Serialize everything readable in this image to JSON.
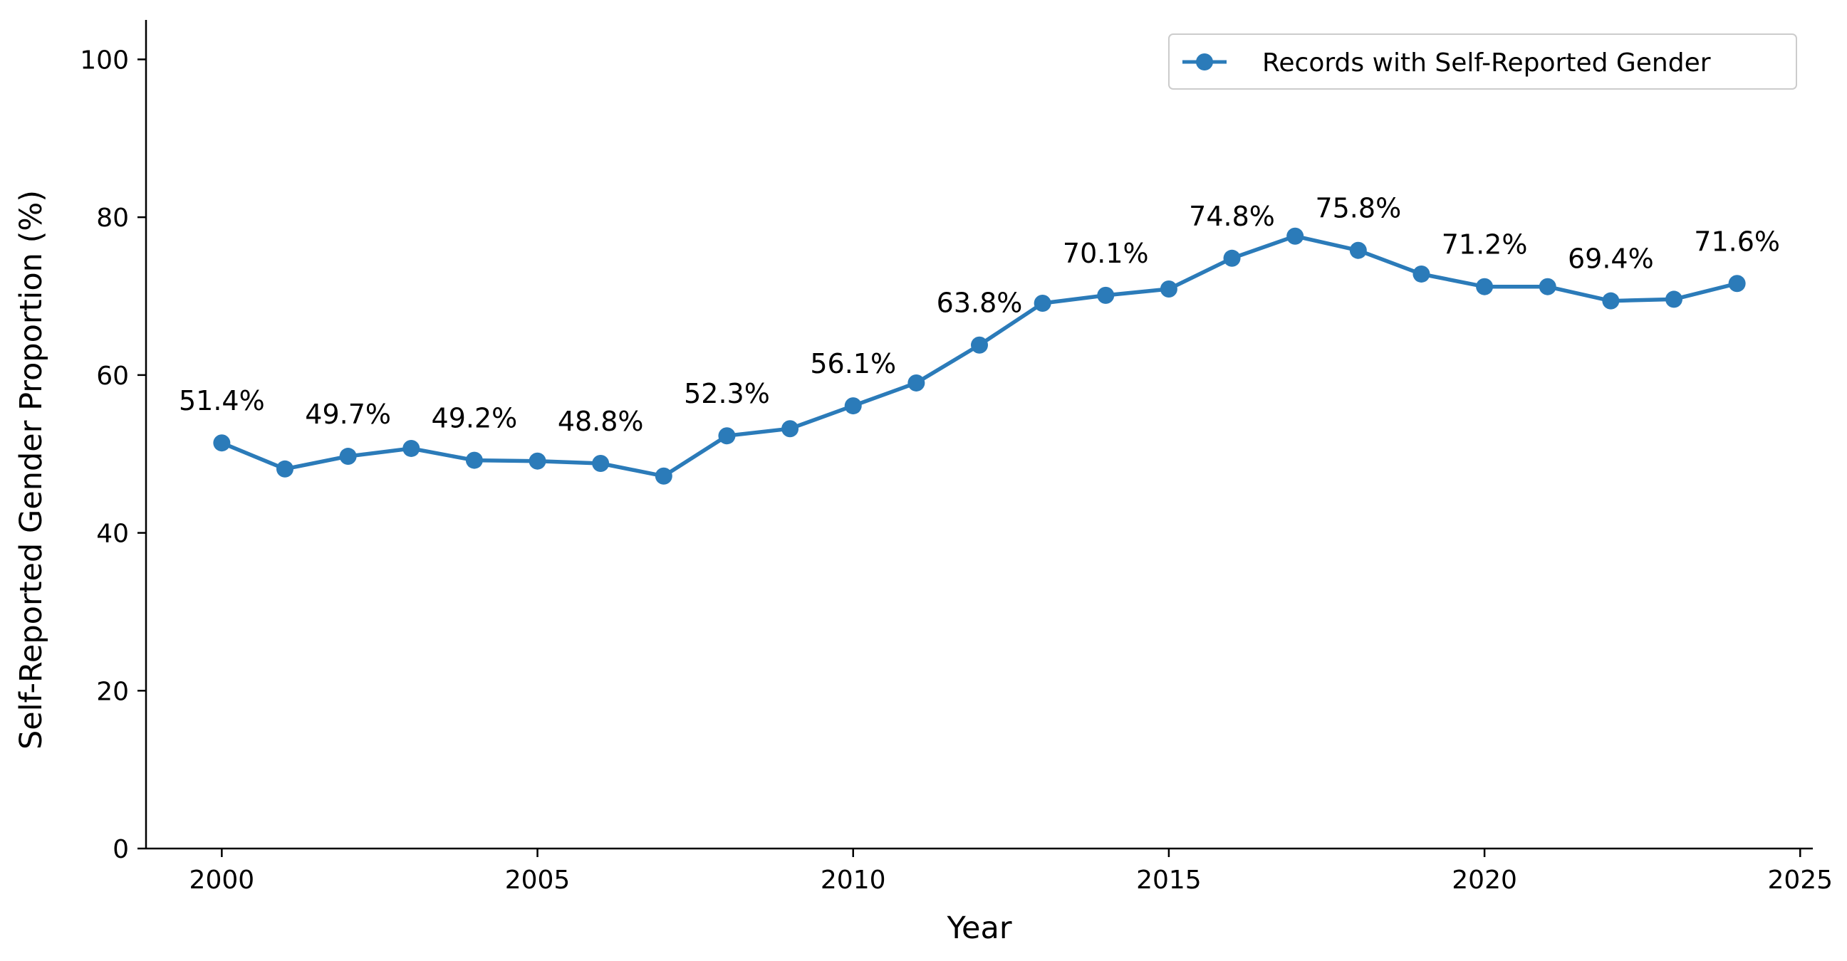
{
  "chart_data": {
    "type": "line",
    "title": "",
    "xlabel": "Year",
    "ylabel": "Self-Reported Gender Proportion (%)",
    "xlim": [
      1998.8,
      2025.2
    ],
    "ylim": [
      0,
      105
    ],
    "xticks": [
      2000,
      2005,
      2010,
      2015,
      2020,
      2025
    ],
    "yticks": [
      0,
      20,
      40,
      60,
      80,
      100
    ],
    "grid": false,
    "legend_position": "top-right",
    "series": [
      {
        "name": "Records with Self-Reported Gender",
        "color": "#2b7bb9",
        "x": [
          2000,
          2001,
          2002,
          2003,
          2004,
          2005,
          2006,
          2007,
          2008,
          2009,
          2010,
          2011,
          2012,
          2013,
          2014,
          2015,
          2016,
          2017,
          2018,
          2019,
          2020,
          2021,
          2022,
          2023,
          2024
        ],
        "values": [
          51.4,
          48.1,
          49.7,
          50.7,
          49.2,
          49.1,
          48.8,
          47.2,
          52.3,
          53.2,
          56.1,
          59.0,
          63.8,
          69.1,
          70.1,
          70.9,
          74.8,
          77.6,
          75.8,
          72.8,
          71.2,
          71.2,
          69.4,
          69.6,
          71.6
        ]
      }
    ],
    "annotations": [
      {
        "x": 2000,
        "value": 51.4,
        "text": "51.4%"
      },
      {
        "x": 2002,
        "value": 49.7,
        "text": "49.7%"
      },
      {
        "x": 2004,
        "value": 49.2,
        "text": "49.2%"
      },
      {
        "x": 2006,
        "value": 48.8,
        "text": "48.8%"
      },
      {
        "x": 2008,
        "value": 52.3,
        "text": "52.3%"
      },
      {
        "x": 2010,
        "value": 56.1,
        "text": "56.1%"
      },
      {
        "x": 2012,
        "value": 63.8,
        "text": "63.8%"
      },
      {
        "x": 2014,
        "value": 70.1,
        "text": "70.1%"
      },
      {
        "x": 2016,
        "value": 74.8,
        "text": "74.8%"
      },
      {
        "x": 2018,
        "value": 75.8,
        "text": "75.8%"
      },
      {
        "x": 2020,
        "value": 71.2,
        "text": "71.2%"
      },
      {
        "x": 2022,
        "value": 69.4,
        "text": "69.4%"
      },
      {
        "x": 2024,
        "value": 71.6,
        "text": "71.6%"
      }
    ]
  }
}
